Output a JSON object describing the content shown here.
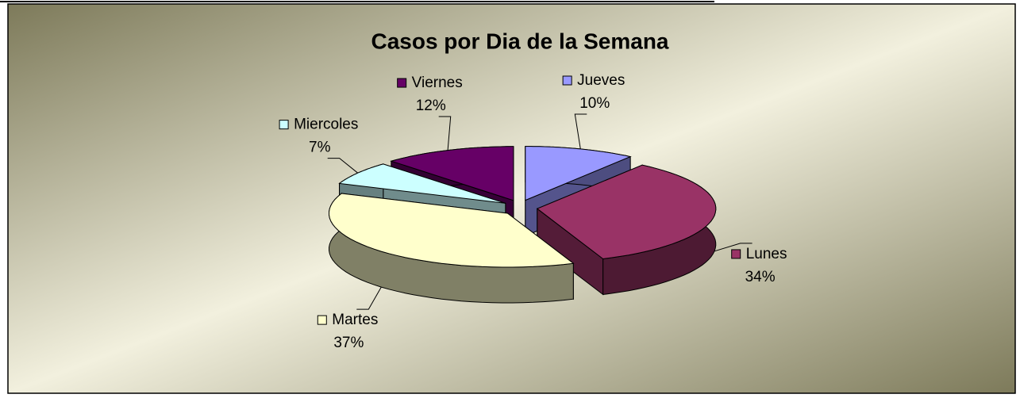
{
  "chart_data": {
    "type": "pie",
    "title": "Casos por Dia de la Semana",
    "categories": [
      "Jueves",
      "Lunes",
      "Martes",
      "Miercoles",
      "Viernes"
    ],
    "values": [
      10,
      34,
      37,
      7,
      12
    ],
    "value_labels": [
      "10%",
      "34%",
      "37%",
      "7%",
      "12%"
    ],
    "colors": [
      "#9999ff",
      "#993366",
      "#ffffcc",
      "#ccffff",
      "#660066"
    ]
  }
}
